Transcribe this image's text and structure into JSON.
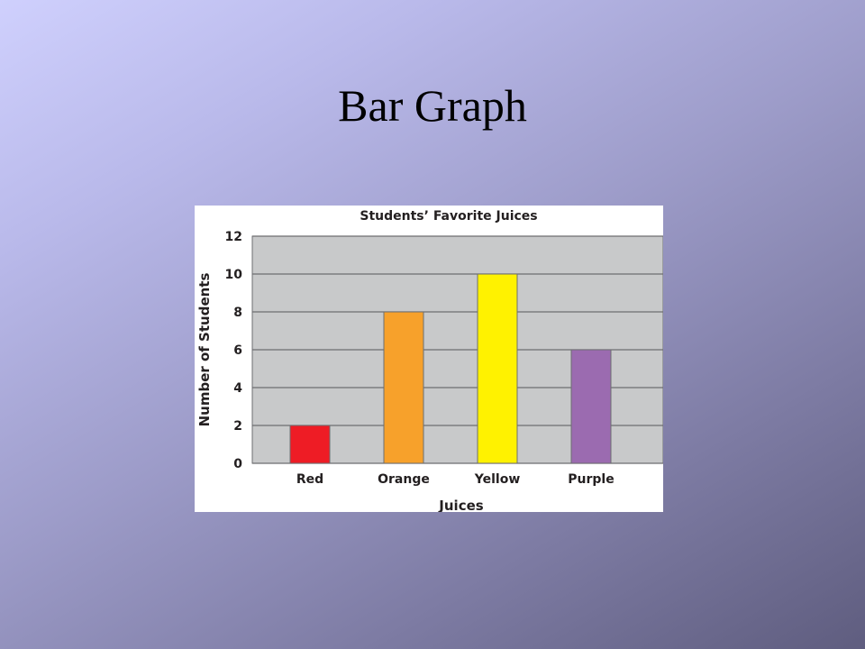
{
  "slide": {
    "title": "Bar Graph"
  },
  "chart_data": {
    "type": "bar",
    "title": "Students’ Favorite Juices",
    "xlabel": "Juices",
    "ylabel": "Number of Students",
    "categories": [
      "Red",
      "Orange",
      "Yellow",
      "Purple"
    ],
    "values": [
      2,
      8,
      10,
      6
    ],
    "bar_colors": [
      "#ee1c25",
      "#f7a12b",
      "#fff200",
      "#9b6bb0"
    ],
    "ylim": [
      0,
      12
    ],
    "yticks": [
      "0",
      "2",
      "4",
      "6",
      "8",
      "10",
      "12"
    ],
    "grid": true,
    "plot_background": "#c8c9ca",
    "grid_color": "#6d6e71"
  }
}
